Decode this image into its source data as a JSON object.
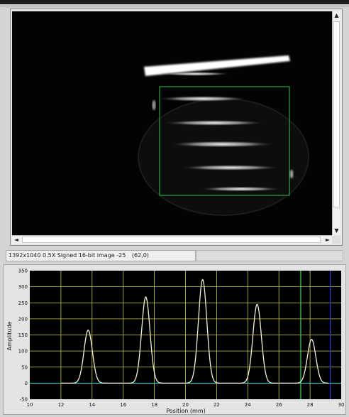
{
  "image_display": {
    "info": "1392x1040 0.5X Signed 16-bit image -25",
    "cursor": "(62,0)",
    "scroll_up_glyph": "▲",
    "scroll_down_glyph": "▼",
    "scroll_left_glyph": "◄",
    "scroll_right_glyph": "►"
  },
  "colors": {
    "plot_background": "#000000",
    "grid": "#c8c84a",
    "profile": "#f2f2d8",
    "baseline": "#3fbfd4",
    "cursor_green": "#35d24a",
    "cursor_blue": "#3438d8",
    "roi": "#33c24a"
  },
  "chart_data": {
    "type": "line",
    "xlabel": "Position (mm)",
    "ylabel": "Amplitude",
    "xlim": [
      10,
      30
    ],
    "ylim": [
      -50,
      350
    ],
    "x_ticks": [
      10,
      12,
      14,
      16,
      18,
      20,
      22,
      24,
      26,
      28,
      30
    ],
    "y_ticks": [
      -50,
      0,
      50,
      100,
      150,
      200,
      250,
      300,
      350
    ],
    "grid": true,
    "series": [
      {
        "peaks": [
          {
            "x": 13.75,
            "y": 165
          },
          {
            "x": 17.45,
            "y": 268
          },
          {
            "x": 21.1,
            "y": 322
          },
          {
            "x": 24.6,
            "y": 245
          },
          {
            "x": 28.1,
            "y": 136
          }
        ],
        "x_start": 12.0,
        "x_end": 29.2,
        "baseline": 0
      }
    ],
    "cursors": [
      {
        "x": 27.4
      },
      {
        "x": 29.3
      }
    ]
  }
}
